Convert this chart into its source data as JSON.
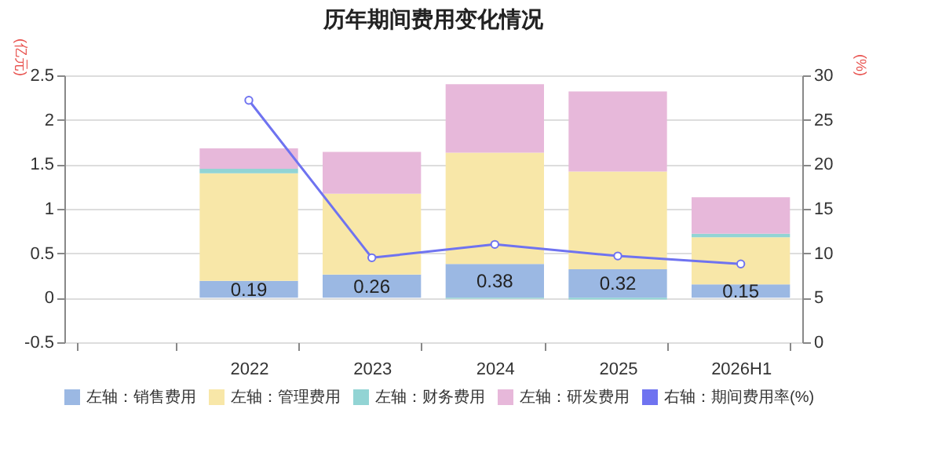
{
  "chart_data": {
    "type": "bar",
    "stacked": true,
    "title": "历年期间费用变化情况",
    "ylabel": "(亿元)",
    "y2label": "(%)",
    "categories": [
      null,
      "2022",
      "2023",
      "2024",
      "2025",
      "2026H1"
    ],
    "series": [
      {
        "name": "左轴：销售费用",
        "color": "#9bb8e3",
        "values": [
          null,
          0.19,
          0.26,
          0.38,
          0.32,
          0.15
        ],
        "value_labels": [
          null,
          "0.19",
          "0.26",
          "0.38",
          "0.32",
          "0.15"
        ]
      },
      {
        "name": "左轴：管理费用",
        "color": "#f8e7a8",
        "values": [
          null,
          1.21,
          0.91,
          1.25,
          1.1,
          0.53
        ]
      },
      {
        "name": "左轴：财务费用",
        "color": "#92d4d4",
        "values": [
          null,
          0.05,
          0.0,
          -0.01,
          -0.02,
          0.04
        ]
      },
      {
        "name": "左轴：研发费用",
        "color": "#e7b8da",
        "values": [
          null,
          0.23,
          0.47,
          0.77,
          0.9,
          0.41
        ]
      },
      {
        "name": "右轴：期间费用率(%)",
        "color": "#6f73f0",
        "type": "line",
        "axis": "y2",
        "marker": "circle",
        "values": [
          null,
          27.2,
          9.5,
          11.0,
          9.7,
          8.8
        ]
      }
    ],
    "ylim": [
      -0.5,
      2.5
    ],
    "yticks": [
      -0.5,
      0,
      0.5,
      1,
      1.5,
      2,
      2.5
    ],
    "y2lim": [
      0,
      30
    ],
    "y2ticks": [
      0,
      5,
      10,
      15,
      20,
      25,
      30
    ],
    "grid": "y",
    "legend": "bottom"
  }
}
